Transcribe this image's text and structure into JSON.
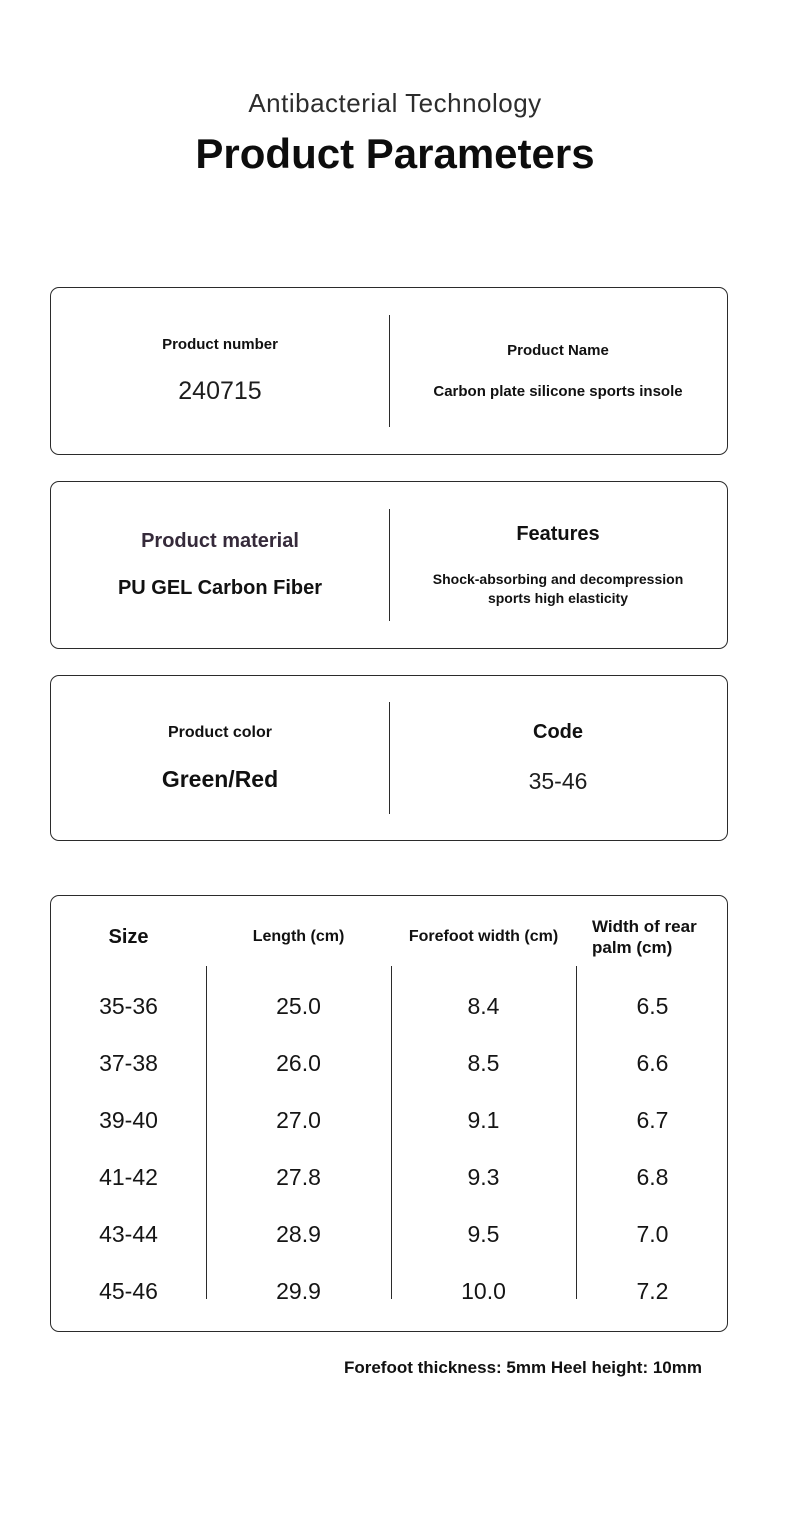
{
  "header": {
    "subtitle": "Antibacterial Technology",
    "title": "Product Parameters"
  },
  "colors": {
    "text": "#111111",
    "border": "#2b2b2b",
    "material_label": "#352a3a",
    "background": "#ffffff"
  },
  "boxes": {
    "number_name": {
      "left_label": "Product number",
      "left_value": "240715",
      "right_label": "Product Name",
      "right_value": "Carbon plate silicone sports insole"
    },
    "material_features": {
      "left_label": "Product material",
      "left_value": "PU GEL Carbon Fiber",
      "right_label": "Features",
      "right_value": "Shock-absorbing and decompression sports high elasticity"
    },
    "color_code": {
      "left_label": "Product color",
      "left_value": "Green/Red",
      "right_label": "Code",
      "right_value": "35-46"
    }
  },
  "table": {
    "headers": [
      "Size",
      "Length (cm)",
      "Forefoot width (cm)",
      "Width of rear palm (cm)"
    ],
    "rows": [
      {
        "size": "35-36",
        "length": "25.0",
        "forefoot": "8.4",
        "rear": "6.5"
      },
      {
        "size": "37-38",
        "length": "26.0",
        "forefoot": "8.5",
        "rear": "6.6"
      },
      {
        "size": "39-40",
        "length": "27.0",
        "forefoot": "9.1",
        "rear": "6.7"
      },
      {
        "size": "41-42",
        "length": "27.8",
        "forefoot": "9.3",
        "rear": "6.8"
      },
      {
        "size": "43-44",
        "length": "28.9",
        "forefoot": "9.5",
        "rear": "7.0"
      },
      {
        "size": "45-46",
        "length": "29.9",
        "forefoot": "10.0",
        "rear": "7.2"
      }
    ]
  },
  "footnote": "Forefoot thickness: 5mm Heel height: 10mm"
}
